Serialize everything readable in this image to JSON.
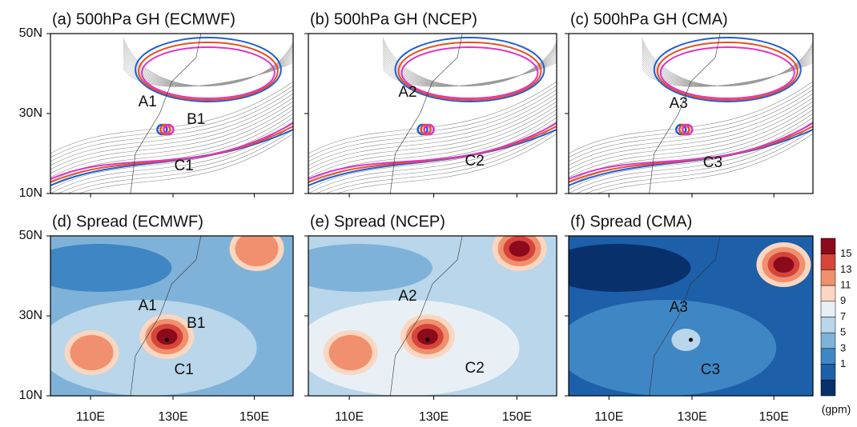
{
  "panels": [
    {
      "title": "(a) 500hPa GH (ECMWF)",
      "labels": [
        "A1",
        "B1",
        "C1"
      ]
    },
    {
      "title": "(b) 500hPa GH (NCEP)",
      "labels": [
        "A2",
        "C2"
      ]
    },
    {
      "title": "(c) 500hPa GH (CMA)",
      "labels": [
        "A3",
        "C3"
      ]
    },
    {
      "title": "(d) Spread (ECMWF)",
      "labels": [
        "A1",
        "B1",
        "C1"
      ]
    },
    {
      "title": "(e) Spread (NCEP)",
      "labels": [
        "A2",
        "C2"
      ]
    },
    {
      "title": "(f) Spread (CMA)",
      "labels": [
        "A3",
        "C3"
      ]
    }
  ],
  "y_axis_labels": [
    "50N",
    "30N",
    "10N"
  ],
  "x_axis_labels": [
    "110E",
    "130E",
    "150E"
  ],
  "colorbar": {
    "labels": [
      "15",
      "13",
      "11",
      "9",
      "7",
      "5",
      "3",
      "1"
    ],
    "unit": "(gpm)"
  }
}
